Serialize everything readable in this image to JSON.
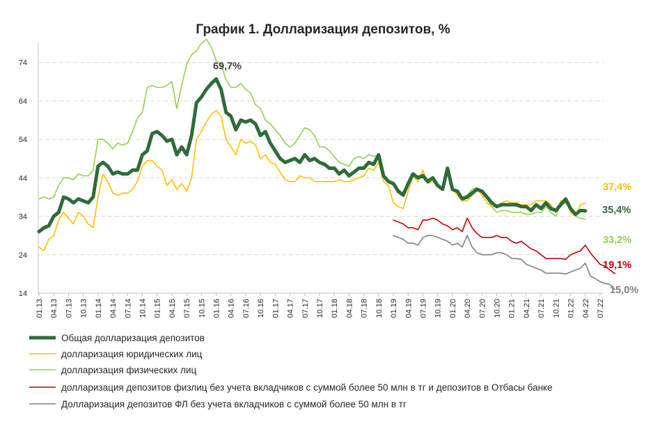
{
  "chart_data": {
    "type": "line",
    "title": "График 1. Долларизация депозитов, %",
    "ylim": [
      14,
      79
    ],
    "y_ticks": [
      14,
      24,
      34,
      44,
      54,
      64,
      74
    ],
    "x_tick_labels": [
      "01.13",
      "04.13",
      "07.13",
      "10.13",
      "01.14",
      "04.14",
      "07.14",
      "10.14",
      "01.15",
      "04.15",
      "07.15",
      "10.15",
      "01.16",
      "04.16",
      "07.16",
      "10.16",
      "01.17",
      "04.17",
      "07.17",
      "10.17",
      "01.18",
      "04.18",
      "07.18",
      "10.18",
      "01.19",
      "04.19",
      "07.19",
      "10.19",
      "01.20",
      "04.20",
      "07.20",
      "10.20",
      "01.21",
      "04.21",
      "07.21",
      "10.21",
      "01.22",
      "04.22",
      "07.22"
    ],
    "x_tick_step_months": 3,
    "grid": "horizontal-dashed",
    "legend_position": "bottom",
    "peak_annotation": {
      "label": "69,7%",
      "month_index": 36,
      "value": 69.7
    },
    "series": [
      {
        "name": "Общая долларизация депозитов",
        "color": "#2E6B3A",
        "end_label": "35,4%",
        "start_month": 0,
        "values": [
          30,
          31,
          31.5,
          34,
          35,
          39,
          38.5,
          37.5,
          38.5,
          38,
          37.5,
          39,
          47,
          48,
          47,
          45,
          45.5,
          45,
          45,
          46,
          46,
          50,
          51,
          55.5,
          56,
          55,
          53.5,
          54,
          50,
          52,
          50,
          55,
          63.5,
          65,
          67,
          68.5,
          69.7,
          67,
          61,
          60,
          56.5,
          59,
          58.5,
          59,
          58,
          55,
          56,
          53,
          51,
          49,
          48,
          48.5,
          49,
          48,
          50,
          48.5,
          49,
          48,
          47.5,
          46.5,
          46.5,
          45,
          46,
          44.5,
          45.5,
          46.5,
          46.5,
          48,
          47.5,
          50,
          44.5,
          43,
          42.5,
          40.5,
          39.5,
          42.5,
          45,
          44,
          44.5,
          43,
          44,
          42,
          41,
          46.5,
          41,
          40.5,
          38.5,
          39,
          40,
          41,
          40.5,
          39,
          37.5,
          36.5,
          37,
          37,
          37,
          37,
          36.5,
          36.5,
          35.5,
          37,
          36,
          37.5,
          36,
          35.5,
          37,
          38.5,
          36,
          34.5,
          35.5,
          35.4
        ]
      },
      {
        "name": "долларизация юридических лиц",
        "color": "#FFC000",
        "end_label": "37,4%",
        "start_month": 0,
        "values": [
          26,
          25,
          28,
          29,
          33,
          35,
          33.5,
          32,
          35,
          34,
          32,
          31,
          39,
          45,
          43,
          40,
          39.5,
          40,
          40,
          41,
          43,
          47,
          48.5,
          48.5,
          47,
          46,
          42,
          43.5,
          41,
          42.5,
          40.5,
          44,
          54,
          56,
          58.5,
          60.5,
          61.5,
          60,
          54,
          52,
          50,
          54,
          53,
          53.5,
          52.5,
          49,
          50,
          48,
          47.5,
          45.5,
          43.5,
          43,
          43,
          44.5,
          44,
          44,
          43,
          43,
          43,
          43,
          43,
          43.5,
          43,
          43,
          43.5,
          44,
          44.5,
          46.5,
          46,
          48,
          43,
          42,
          37.5,
          36.5,
          36,
          40.5,
          44.5,
          43,
          46,
          42.5,
          43,
          41.5,
          41,
          46,
          41,
          39.5,
          38,
          38,
          39.5,
          41,
          39.5,
          37.5,
          36.5,
          36.5,
          37.5,
          38,
          37.5,
          37.5,
          37,
          37,
          37,
          38,
          38,
          38,
          37,
          35,
          38,
          38,
          35,
          34,
          37,
          37.4
        ]
      },
      {
        "name": "долларизация физических лиц",
        "color": "#92D050",
        "end_label": "33,2%",
        "start_month": 0,
        "values": [
          38.5,
          39,
          38.5,
          39,
          42,
          44,
          44,
          43.5,
          45,
          44.5,
          44.5,
          46,
          54,
          54,
          53,
          51.5,
          53,
          52.5,
          53,
          56,
          59.5,
          61,
          67.5,
          68,
          67.5,
          67.5,
          68,
          69,
          62,
          68,
          73.5,
          76,
          77,
          79,
          80,
          78,
          74.5,
          73.5,
          69.5,
          67.5,
          67.5,
          68.5,
          67,
          66,
          63,
          62,
          59,
          58,
          56.5,
          55,
          53,
          52,
          53,
          55,
          57,
          56.5,
          55,
          52,
          52,
          51,
          49.5,
          48,
          47.5,
          47,
          49,
          49.5,
          49,
          50,
          49.5,
          50,
          45,
          43,
          42,
          40,
          40.5,
          42.5,
          45,
          44.5,
          45,
          43.5,
          44,
          42,
          41.5,
          46.5,
          41.5,
          40,
          39,
          39.5,
          41,
          41.5,
          40,
          38.5,
          36.5,
          35,
          35.5,
          35.5,
          35,
          35,
          35,
          34.5,
          34.5,
          35,
          35,
          36.5,
          35,
          34,
          37,
          37.5,
          35.5,
          34,
          33.5,
          33.2
        ]
      },
      {
        "name": "долларизация депозитов физлиц  без учета вкладчиков с суммой более 50 млн в тг и депозитов в Отбасы банке",
        "color": "#C00000",
        "end_label": "19,1%",
        "start_month": 72,
        "values": [
          33,
          32.5,
          32,
          31,
          31,
          30.5,
          33,
          33,
          33.5,
          33,
          32,
          31.5,
          30.5,
          31,
          30,
          33.5,
          31,
          29.5,
          28.5,
          28.5,
          28.5,
          29,
          28.5,
          28.5,
          27.5,
          27,
          27.5,
          26.5,
          25.5,
          25,
          24,
          23,
          23,
          23,
          23,
          22.8,
          24,
          24.5,
          25,
          26.5,
          24.5,
          23,
          21.5,
          21,
          20,
          19.1
        ]
      },
      {
        "name": "Долларизация депозитов ФЛ  без учета вкладчиков с суммой более 50 млн в тг",
        "color": "#808080",
        "end_label": "15,0%",
        "start_month": 72,
        "values": [
          29,
          28.5,
          28,
          27,
          27,
          26.5,
          28.5,
          29,
          29,
          28.5,
          28,
          27.5,
          26.5,
          27,
          26,
          29,
          26,
          24.5,
          24,
          24,
          24,
          24.5,
          24.5,
          24,
          23,
          23,
          22.8,
          21.5,
          21,
          20.5,
          20,
          19.2,
          19.2,
          19.2,
          19.2,
          19,
          19.5,
          20,
          20.5,
          21.8,
          18.5,
          17.8,
          17,
          16.5,
          16.3,
          15.0
        ]
      }
    ]
  }
}
